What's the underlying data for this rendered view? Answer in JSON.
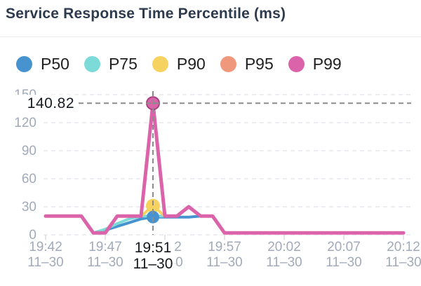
{
  "header": {
    "title": "Service Response Time Percentile (ms)"
  },
  "legend": {
    "items": [
      {
        "label": "P50",
        "color": "#4793d0"
      },
      {
        "label": "P75",
        "color": "#7cdbd9"
      },
      {
        "label": "P90",
        "color": "#f6d360"
      },
      {
        "label": "P95",
        "color": "#f0987b"
      },
      {
        "label": "P99",
        "color": "#db63a9"
      }
    ]
  },
  "chart_data": {
    "type": "line",
    "title": "Service Response Time Percentile (ms)",
    "xlabel": "",
    "ylabel": "",
    "ylim": [
      0,
      150
    ],
    "y_ticks": [
      0,
      30,
      60,
      90,
      120,
      150
    ],
    "grid": "horizontal-dashed",
    "legend_position": "top",
    "x_start": "19:42",
    "x_step_minutes": 1,
    "x_point_count": 31,
    "x_tick_every": 5,
    "x_tick_labels": [
      {
        "time": "19:42",
        "date": "11–30"
      },
      {
        "time": "19:47",
        "date": "11–30"
      },
      {
        "time": "19:52",
        "date": "11–30"
      },
      {
        "time": "19:57",
        "date": "11–30"
      },
      {
        "time": "20:02",
        "date": "11–30"
      },
      {
        "time": "20:07",
        "date": "11–30"
      },
      {
        "time": "20:12",
        "date": "11–30"
      }
    ],
    "series": [
      {
        "name": "P50",
        "color": "#4793d0",
        "values": [
          20,
          20,
          20,
          20,
          2,
          5,
          9,
          13,
          17,
          19,
          19,
          19,
          19,
          20,
          20,
          2,
          2,
          2,
          2,
          2,
          2,
          2,
          2,
          2,
          2,
          2,
          2,
          2,
          2,
          2,
          2
        ]
      },
      {
        "name": "P75",
        "color": "#7cdbd9",
        "values": [
          20,
          20,
          20,
          20,
          2,
          6,
          12,
          17,
          20,
          20,
          20,
          20,
          30,
          20,
          20,
          2,
          2,
          2,
          2,
          2,
          2,
          2,
          2,
          2,
          2,
          2,
          2,
          2,
          2,
          2,
          2
        ]
      },
      {
        "name": "P90",
        "color": "#f6d360",
        "values": [
          20,
          20,
          20,
          20,
          2,
          2,
          20,
          20,
          20,
          31,
          20,
          20,
          30,
          20,
          20,
          2,
          2,
          2,
          2,
          2,
          2,
          2,
          2,
          2,
          2,
          2,
          2,
          2,
          2,
          2,
          2
        ]
      },
      {
        "name": "P95",
        "color": "#f0987b",
        "values": [
          20,
          20,
          20,
          20,
          2,
          2,
          20,
          20,
          20,
          140.82,
          20,
          20,
          30,
          20,
          20,
          2,
          2,
          2,
          2,
          2,
          2,
          2,
          2,
          2,
          2,
          2,
          2,
          2,
          2,
          2,
          2
        ]
      },
      {
        "name": "P99",
        "color": "#db63a9",
        "values": [
          20,
          20,
          20,
          20,
          2,
          2,
          20,
          20,
          20,
          140.82,
          20,
          20,
          30,
          20,
          20,
          2,
          2,
          2,
          2,
          2,
          2,
          2,
          2,
          2,
          2,
          2,
          2,
          2,
          2,
          2,
          2
        ]
      }
    ],
    "annotation": {
      "label": "140.82",
      "value": 140.82
    },
    "active_point": {
      "index": 9,
      "time": "19:51",
      "date": "11–30",
      "markers": [
        {
          "series": "P90",
          "value": 31
        },
        {
          "series": "P50",
          "value": 19
        },
        {
          "series": "P99",
          "value": 140.82
        }
      ]
    },
    "colors": {
      "axis_label": "#a2aab9",
      "active_label": "#15181e",
      "annotation_text": "#161b22",
      "gridline": "#e6e9ed",
      "tick": "#d9dde3",
      "crosshair": "#8c8c8c",
      "peak_marker_stroke": "#a8437f"
    }
  }
}
